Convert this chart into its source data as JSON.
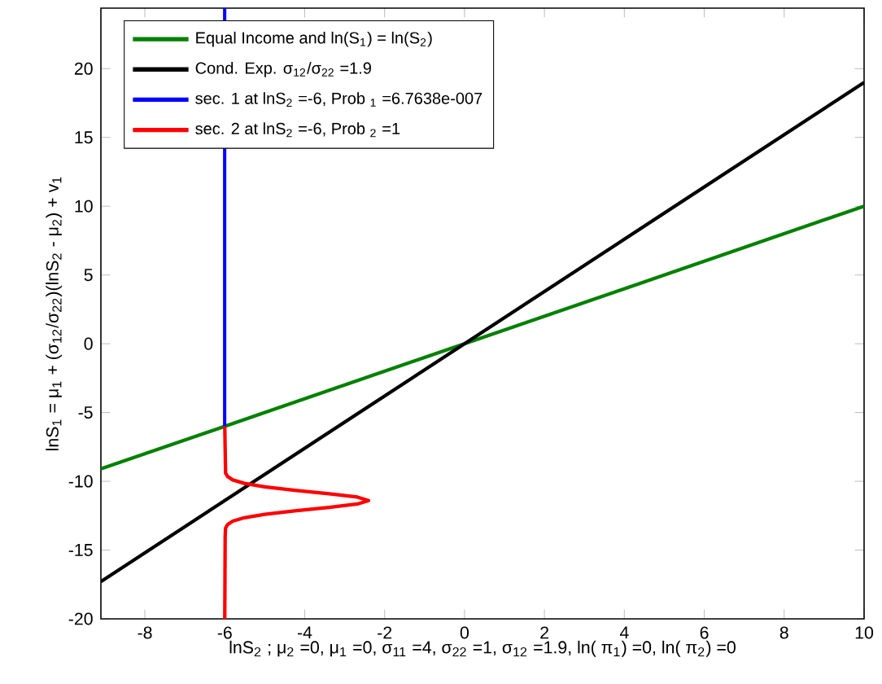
{
  "chart_data": {
    "type": "line",
    "xlabel": "lnS$_{2}$ ; μ$_{2}$ =0, μ$_{1}$ =0, σ$_{11}$ =4, σ$_{22}$ =1, σ$_{12}$ =1.9, ln( π$_{1}$) =0, ln( π$_{2}$) =0",
    "ylabel": "lnS$_{1}$ = μ$_{1}$ + (σ$_{12}$/σ$_{22}$)(lnS$_{2}$ - μ$_{2}$) + v$_{1}$",
    "xlim": [
      -9.1,
      10
    ],
    "ylim": [
      -20,
      24.4
    ],
    "xticks": [
      -8,
      -6,
      -4,
      -2,
      0,
      2,
      4,
      6,
      8,
      10
    ],
    "yticks": [
      -20,
      -15,
      -10,
      -5,
      0,
      5,
      10,
      15,
      20
    ],
    "grid": false,
    "legend": "top left",
    "marker": "none",
    "line_style": "solid",
    "series": [
      {
        "name": "Equal Income and ln(S$_{1}$) = ln(S$_{2}$)",
        "color": "#008000",
        "x": [
          -9.1,
          10
        ],
        "values": [
          -9.1,
          10
        ]
      },
      {
        "name": "Cond. Exp. σ$_{12}$/σ$_{22}$ =1.9",
        "color": "#000000",
        "x": [
          -9.1,
          10
        ],
        "values": [
          -17.29,
          19
        ]
      },
      {
        "name": "sec. 1 at lnS$_{2}$ =-6, Prob $_{1}$ =6.7638e-007",
        "color": "#0000ff",
        "x": [
          -6,
          -6
        ],
        "values": [
          -6,
          24.4
        ]
      },
      {
        "name": "sec. 2 at lnS$_{2}$ =-6, Prob $_{2}$ =1",
        "color": "#ff0000",
        "x": [
          -6,
          -5.99,
          -5.98,
          -5.93,
          -5.8,
          -5.51,
          -5.0,
          -4.25,
          -3.39,
          -2.68,
          -2.4,
          -2.68,
          -3.39,
          -4.25,
          -5.0,
          -5.51,
          -5.8,
          -5.93,
          -5.98,
          -6
        ],
        "values": [
          -20,
          -14,
          -13.4,
          -13.15,
          -12.9,
          -12.65,
          -12.4,
          -12.15,
          -11.9,
          -11.65,
          -11.4,
          -11.15,
          -10.9,
          -10.65,
          -10.4,
          -10.15,
          -9.9,
          -9.65,
          -9.4,
          -6
        ]
      }
    ]
  }
}
